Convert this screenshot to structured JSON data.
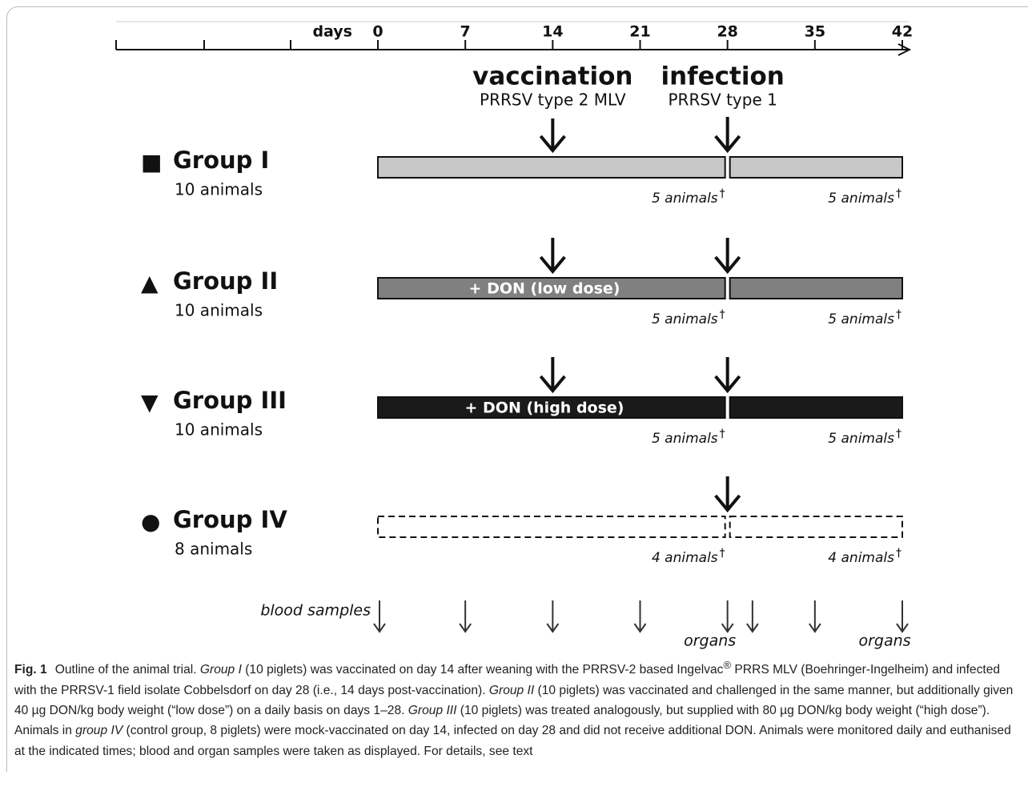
{
  "timeline": {
    "unit_label": "days",
    "days": [
      0,
      7,
      14,
      21,
      28,
      35,
      42
    ]
  },
  "events": [
    {
      "title": "vaccination",
      "subtitle": "PRRSV type 2 MLV",
      "day": 14
    },
    {
      "title": "infection",
      "subtitle": "PRRSV type 1",
      "day": 28
    }
  ],
  "groups": [
    {
      "symbol": "■",
      "name": "Group I",
      "animals": "10 animals",
      "fill": "#c8c8c8",
      "dashed": false,
      "vaccinated": true,
      "counts": [
        {
          "text": "5 animals",
          "mark": "†"
        },
        {
          "text": "5 animals",
          "mark": "†"
        }
      ]
    },
    {
      "symbol": "▲",
      "name": "Group II",
      "animals": "10 animals",
      "fill": "#808080",
      "dashed": false,
      "vaccinated": true,
      "bar_label": "+ DON (low dose)",
      "counts": [
        {
          "text": "5 animals",
          "mark": "†"
        },
        {
          "text": "5 animals",
          "mark": "†"
        }
      ]
    },
    {
      "symbol": "▼",
      "name": "Group III",
      "animals": "10 animals",
      "fill": "#1a1a1a",
      "dashed": false,
      "vaccinated": true,
      "bar_label": "+ DON (high dose)",
      "counts": [
        {
          "text": "5 animals",
          "mark": "†"
        },
        {
          "text": "5 animals",
          "mark": "†"
        }
      ]
    },
    {
      "symbol": "●",
      "name": "Group IV",
      "animals": "8 animals",
      "fill": "#ffffff",
      "dashed": true,
      "vaccinated": false,
      "counts": [
        {
          "text": "4 animals",
          "mark": "†"
        },
        {
          "text": "4 animals",
          "mark": "†"
        }
      ]
    }
  ],
  "samples": {
    "blood_label": "blood samples",
    "blood_days": [
      0,
      7,
      14,
      21,
      28,
      30,
      35,
      42
    ],
    "organ_label": "organs",
    "organ_days": [
      28,
      42
    ]
  },
  "caption": {
    "label": "Fig. 1",
    "runs": [
      {
        "text": "Outline of the animal trial. "
      },
      {
        "text": "Group I",
        "italic": true
      },
      {
        "text": " (10 piglets) was vaccinated on day 14 after weaning with the PRRSV-2 based Ingelvac"
      },
      {
        "text": "®",
        "sup": true
      },
      {
        "text": " PRRS MLV (Boehringer-Ingelheim) and infected with the PRRSV-1 field isolate Cobbelsdorf on day 28 (i.e., 14 days post-vaccination). "
      },
      {
        "text": "Group II",
        "italic": true
      },
      {
        "text": " (10 piglets) was vaccinated and challenged in the same manner, but additionally given 40 µg DON/kg body weight (“low dose”) on a daily basis on days 1–28. "
      },
      {
        "text": "Group III",
        "italic": true
      },
      {
        "text": " (10 piglets) was treated analogously, but supplied with 80 µg DON/kg body weight (“high dose”). Animals in "
      },
      {
        "text": "group IV",
        "italic": true
      },
      {
        "text": " (control group, 8 piglets) were mock-vaccinated on day 14, infected on day 28 and did not receive additional DON. Animals were monitored daily and euthanised at the indicated times; blood and organ samples were taken as displayed. For details, see text"
      }
    ]
  }
}
